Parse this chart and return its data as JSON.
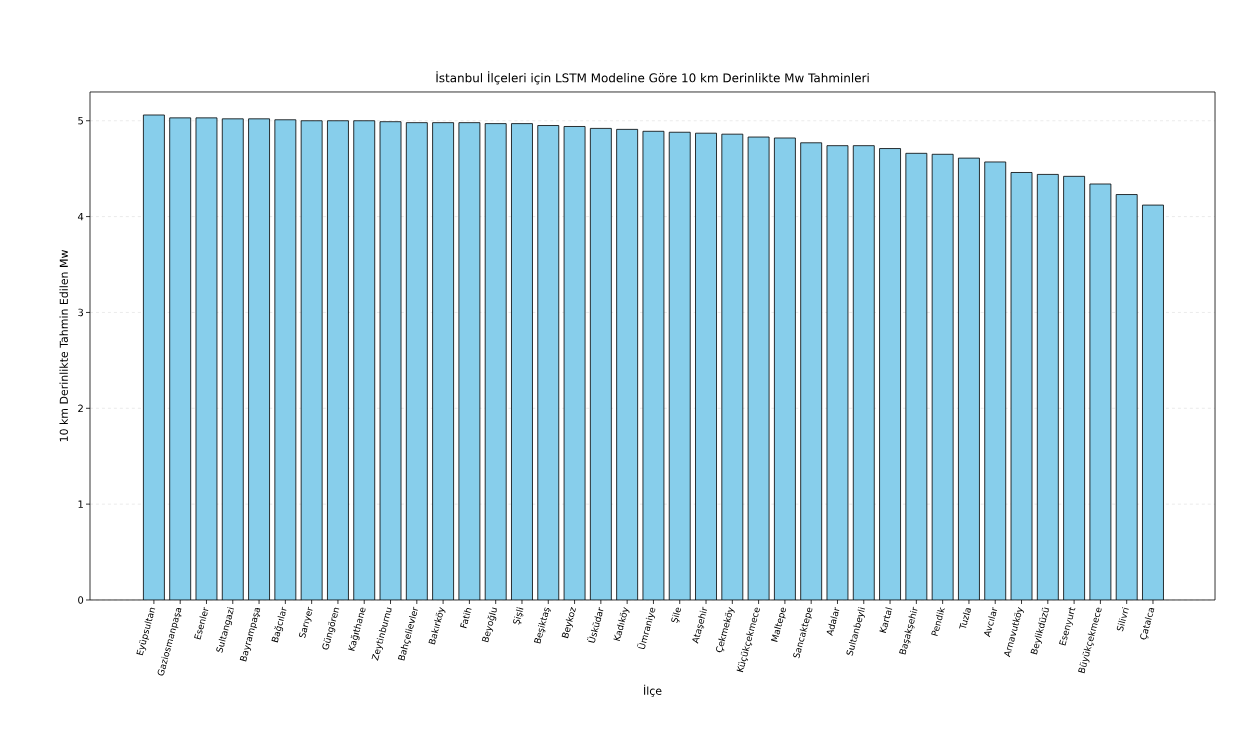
{
  "chart_data": {
    "type": "bar",
    "title": "İstanbul İlçeleri için LSTM Modeline Göre 10 km Derinlikte Mw Tahminleri",
    "xlabel": "İlçe",
    "ylabel": "10 km Derinlikte Tahmin Edilen Mw",
    "categories": [
      "Eyüpsultan",
      "Gaziosmanpaşa",
      "Esenler",
      "Sultangazi",
      "Bayrampaşa",
      "Bağcılar",
      "Sarıyer",
      "Güngören",
      "Kağıthane",
      "Zeytinburnu",
      "Bahçelievler",
      "Bakırköy",
      "Fatih",
      "Beyoğlu",
      "Şişli",
      "Beşiktaş",
      "Beykoz",
      "Üsküdar",
      "Kadıköy",
      "Ümraniye",
      "Şile",
      "Ataşehir",
      "Çekmeköy",
      "Küçükçekmece",
      "Maltepe",
      "Sancaktepe",
      "Adalar",
      "Sultanbeyli",
      "Kartal",
      "Başakşehir",
      "Pendik",
      "Tuzla",
      "Avcılar",
      "Arnavutköy",
      "Beylikdüzü",
      "Esenyurt",
      "Büyükçekmece",
      "Silivri",
      "Çatalca"
    ],
    "values": [
      5.06,
      5.03,
      5.03,
      5.02,
      5.02,
      5.01,
      5.0,
      5.0,
      5.0,
      4.99,
      4.98,
      4.98,
      4.98,
      4.97,
      4.97,
      4.95,
      4.94,
      4.92,
      4.91,
      4.89,
      4.88,
      4.87,
      4.86,
      4.83,
      4.82,
      4.77,
      4.74,
      4.74,
      4.71,
      4.66,
      4.65,
      4.61,
      4.57,
      4.46,
      4.44,
      4.42,
      4.34,
      4.23,
      4.12
    ],
    "color": "#87ceeb",
    "ylim": [
      0,
      5.3
    ],
    "yticks": [
      {
        "value": 0,
        "label": "0"
      },
      {
        "value": 1,
        "label": "1"
      },
      {
        "value": 2,
        "label": "2"
      },
      {
        "value": 3,
        "label": "3"
      },
      {
        "value": 4,
        "label": "4"
      },
      {
        "value": 5,
        "label": "5"
      }
    ],
    "grid": "y"
  }
}
